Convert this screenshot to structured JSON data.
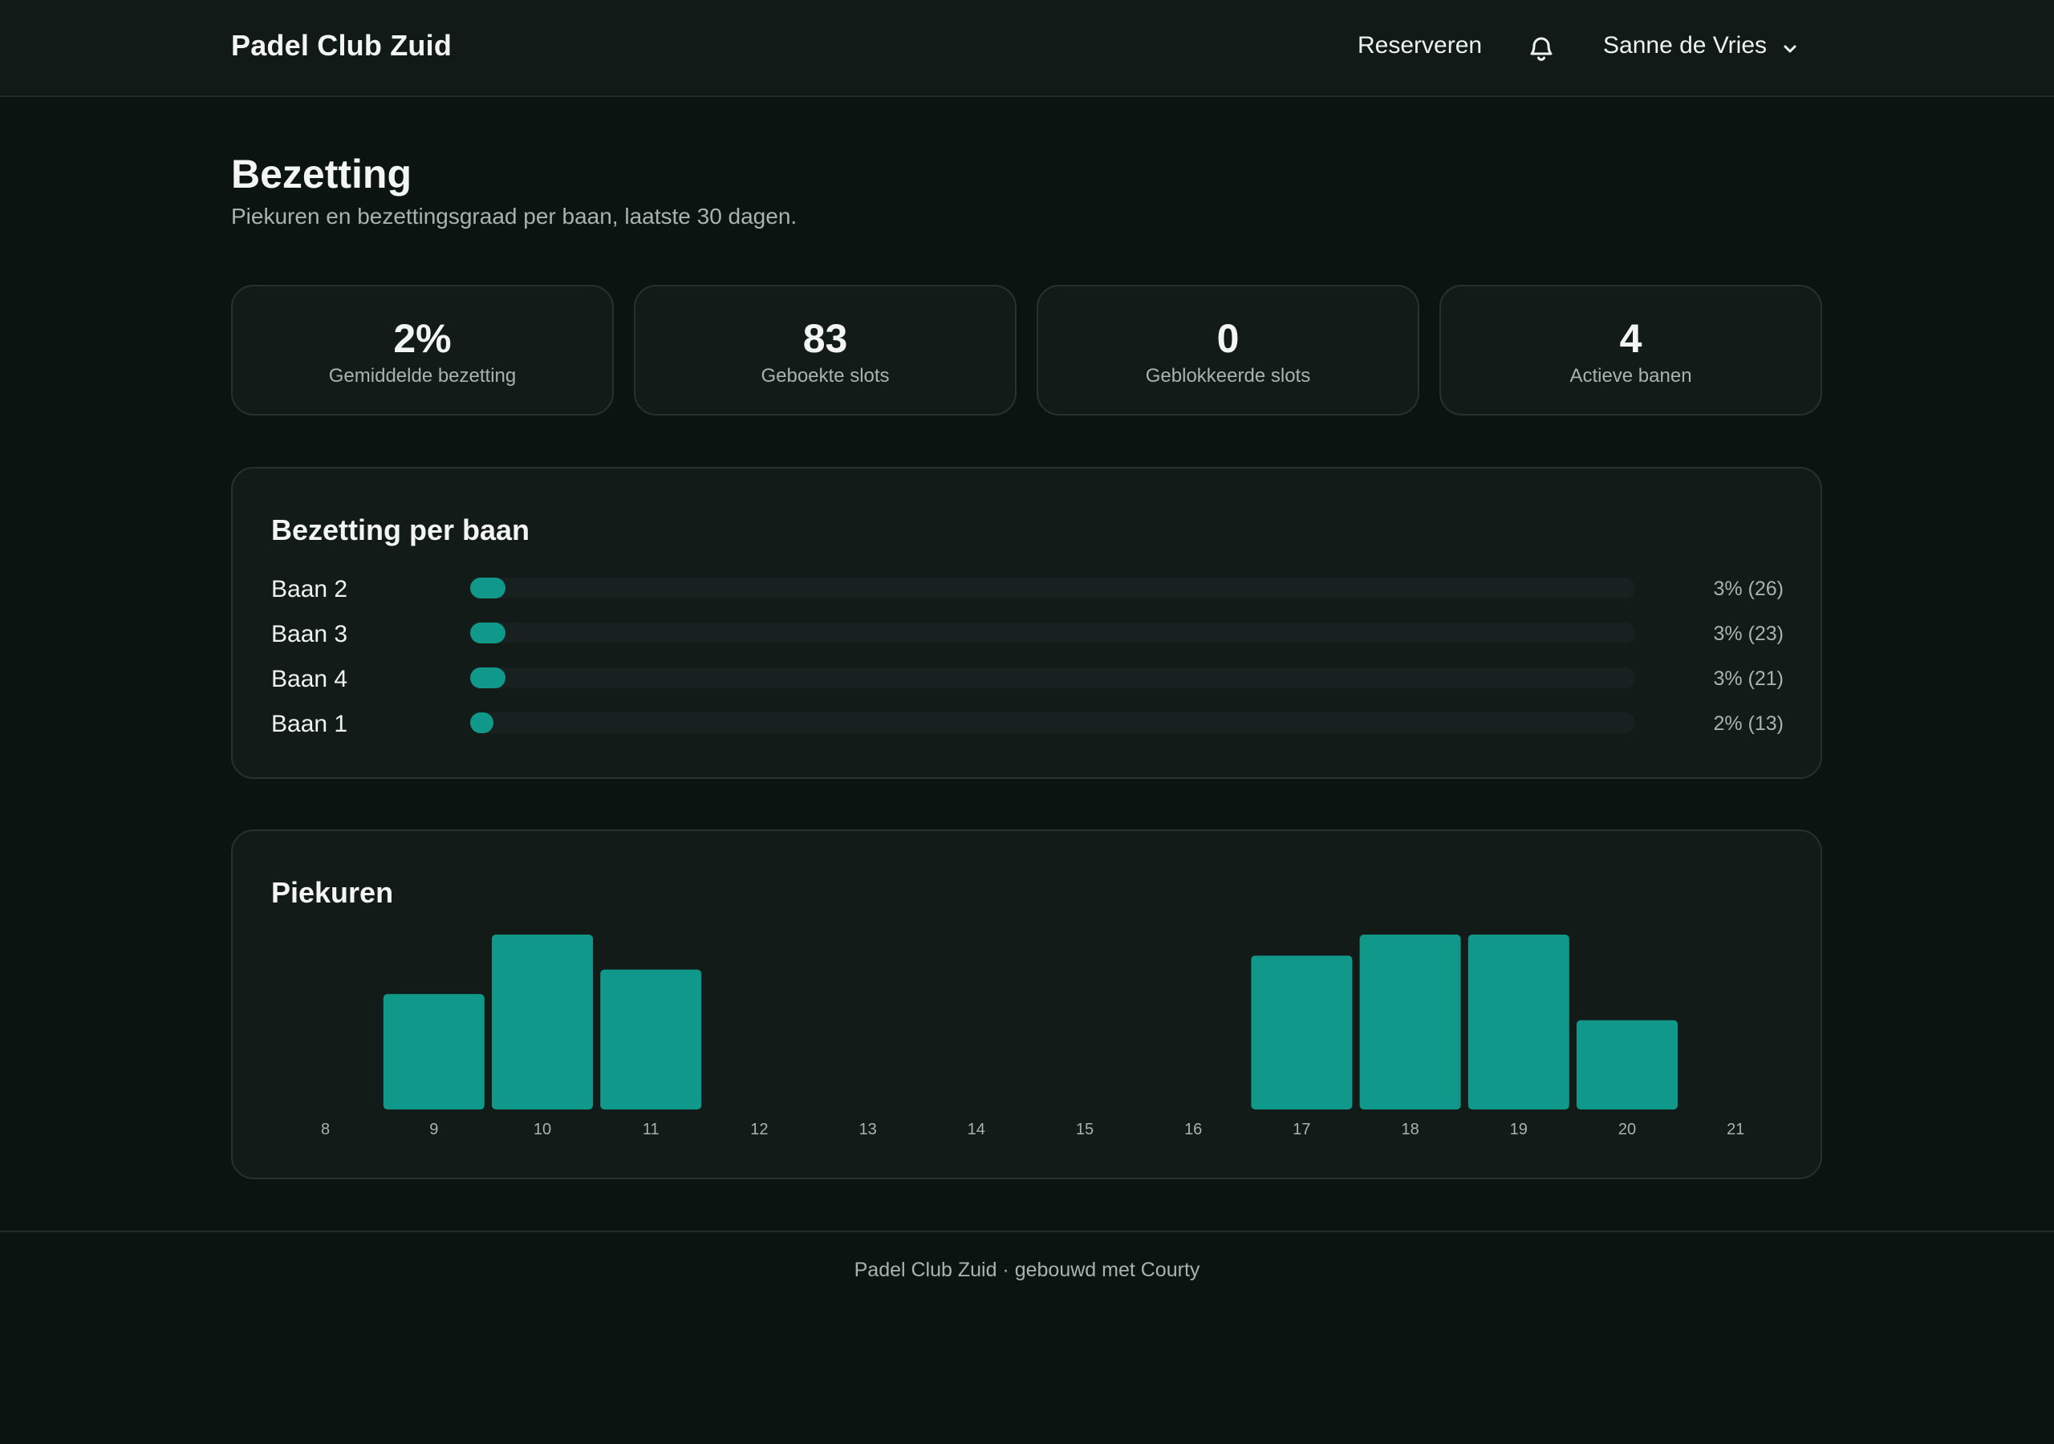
{
  "nav": {
    "brand": "Padel Club Zuid",
    "reserve_label": "Reserveren",
    "bell_icon": "bell-icon",
    "user_name": "Sanne de Vries",
    "user_menu_icon": "chevron-down-icon"
  },
  "page": {
    "title": "Bezetting",
    "subtitle": "Piekuren en bezettingsgraad per baan, laatste 30 dagen."
  },
  "stats": [
    {
      "value": "2%",
      "label": "Gemiddelde bezetting"
    },
    {
      "value": "83",
      "label": "Geboekte slots"
    },
    {
      "value": "0",
      "label": "Geblokkeerde slots"
    },
    {
      "value": "4",
      "label": "Actieve banen"
    }
  ],
  "court_panel": {
    "title": "Bezetting per baan",
    "rows": [
      {
        "name": "Baan 2",
        "percent": 3,
        "value_label": "3% (26)"
      },
      {
        "name": "Baan 3",
        "percent": 3,
        "value_label": "3% (23)"
      },
      {
        "name": "Baan 4",
        "percent": 3,
        "value_label": "3% (21)"
      },
      {
        "name": "Baan 1",
        "percent": 2,
        "value_label": "2% (13)"
      }
    ]
  },
  "peak_panel": {
    "title": "Piekuren"
  },
  "chart_data": {
    "type": "bar",
    "title": "Piekuren",
    "categories": [
      "8",
      "9",
      "10",
      "11",
      "12",
      "13",
      "14",
      "15",
      "16",
      "17",
      "18",
      "19",
      "20",
      "21"
    ],
    "values": [
      0,
      0.66,
      1.0,
      0.8,
      0,
      0,
      0,
      0,
      0,
      0.88,
      1.0,
      1.0,
      0.51,
      0
    ],
    "ylim": [
      0,
      1
    ],
    "grid": false,
    "color": "#10988a"
  },
  "footer": {
    "text": "Padel Club Zuid · gebouwd met Courty"
  },
  "colors": {
    "background": "#0c1412",
    "surface": "#131b19",
    "accent": "#10988a",
    "muted_text": "#a8b3af"
  }
}
